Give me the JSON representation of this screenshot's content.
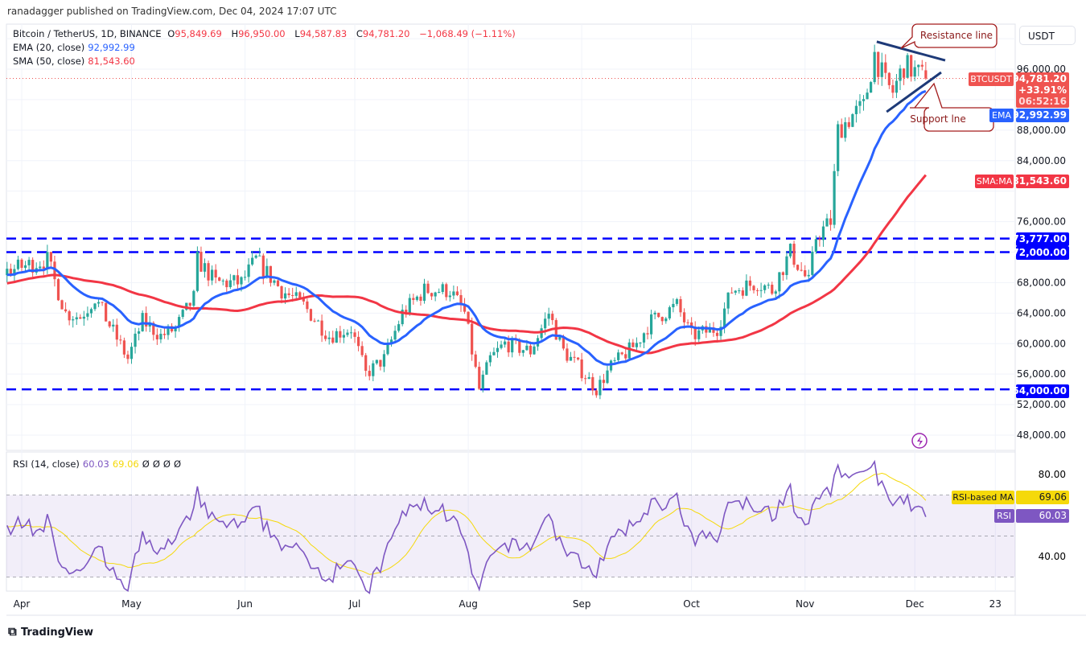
{
  "published": "ranadagger published on TradingView.com, Dec 04, 2024 17:07 UTC",
  "legend": {
    "symbol": "Bitcoin / TetherUS, 1D, BINANCE",
    "o_label": "O",
    "o": "95,849.69",
    "h_label": "H",
    "h": "96,950.00",
    "l_label": "L",
    "l": "94,587.83",
    "c_label": "C",
    "c": "94,781.20",
    "change": "−1,068.49 (−1.11%)",
    "ema_label": "EMA (20, close)",
    "ema": "92,992.99",
    "sma_label": "SMA (50, close)",
    "sma": "81,543.60",
    "rsi_label": "RSI (14, close)",
    "rsi": "60.03",
    "rsi_ma": "69.06",
    "na": [
      "Ø",
      "Ø",
      "Ø",
      "Ø"
    ]
  },
  "currency": "USDT",
  "badges": {
    "symbol": "BTCUSDT",
    "price": "94,781.20",
    "pct": "+33.91%",
    "countdown": "06:52:16",
    "ema_tag": "EMA",
    "ema": "92,992.99",
    "sma_tag": "SMA:MA",
    "sma": "81,543.60",
    "lvl1": "73,777.00",
    "lvl2": "72,000.00",
    "lvl3": "54,000.00",
    "rsi_ma_tag": "RSI-based MA",
    "rsi_ma": "69.06",
    "rsi_tag": "RSI",
    "rsi": "60.03"
  },
  "annotations": {
    "resistance": "Resistance line",
    "support": "Support lne"
  },
  "footer": "TradingView",
  "colors": {
    "up": "#26a69a",
    "down": "#ef5350",
    "ema": "#2962ff",
    "sma": "#f23645",
    "level": "#0000ff",
    "rsi": "#7e57c2",
    "rsi_ma": "#f5d90a",
    "trend": "#1e3a78"
  },
  "chart_data": {
    "type": "candlestick",
    "title": "Bitcoin / TetherUS, 1D, BINANCE",
    "x_unit": "days since 2024-04-01",
    "xlabels": [
      {
        "day": 0,
        "label": "Apr"
      },
      {
        "day": 30,
        "label": "May"
      },
      {
        "day": 61,
        "label": "Jun"
      },
      {
        "day": 91,
        "label": "Jul"
      },
      {
        "day": 122,
        "label": "Aug"
      },
      {
        "day": 153,
        "label": "Sep"
      },
      {
        "day": 183,
        "label": "Oct"
      },
      {
        "day": 214,
        "label": "Nov"
      },
      {
        "day": 244,
        "label": "Dec"
      },
      {
        "day": 266,
        "label": "23"
      }
    ],
    "ylim": [
      46000,
      102000
    ],
    "yticks": [
      96000,
      88000,
      84000,
      76000,
      68000,
      64000,
      60000,
      56000,
      52000,
      48000
    ],
    "rsi_ticks": [
      80,
      40
    ],
    "close_anchors": [
      [
        -60,
        62000
      ],
      [
        -40,
        68000
      ],
      [
        -20,
        68500
      ],
      [
        -4,
        69500
      ],
      [
        3,
        70500
      ],
      [
        7,
        71000
      ],
      [
        12,
        64000
      ],
      [
        16,
        63500
      ],
      [
        20,
        66000
      ],
      [
        29,
        58000
      ],
      [
        33,
        63000
      ],
      [
        38,
        61000
      ],
      [
        42,
        62000
      ],
      [
        47,
        66000
      ],
      [
        48,
        71000
      ],
      [
        53,
        68000
      ],
      [
        60,
        68000
      ],
      [
        64,
        71000
      ],
      [
        71,
        67000
      ],
      [
        77,
        65000
      ],
      [
        84,
        61000
      ],
      [
        90,
        62000
      ],
      [
        94,
        56000
      ],
      [
        99,
        58000
      ],
      [
        104,
        64000
      ],
      [
        110,
        67000
      ],
      [
        117,
        67000
      ],
      [
        121,
        64000
      ],
      [
        125,
        54000
      ],
      [
        128,
        58000
      ],
      [
        132,
        60000
      ],
      [
        139,
        59000
      ],
      [
        144,
        64000
      ],
      [
        148,
        59000
      ],
      [
        152,
        57000
      ],
      [
        157,
        54000
      ],
      [
        161,
        57000
      ],
      [
        168,
        60000
      ],
      [
        172,
        63000
      ],
      [
        179,
        65000
      ],
      [
        183,
        61000
      ],
      [
        190,
        62000
      ],
      [
        194,
        67000
      ],
      [
        201,
        68000
      ],
      [
        205,
        67000
      ],
      [
        210,
        72000
      ],
      [
        215,
        68000
      ],
      [
        217,
        74000
      ],
      [
        221,
        76000
      ],
      [
        223,
        88000
      ],
      [
        227,
        90000
      ],
      [
        230,
        91000
      ],
      [
        233,
        98000
      ],
      [
        236,
        94000
      ],
      [
        238,
        93000
      ],
      [
        241,
        96500
      ],
      [
        243,
        96000
      ],
      [
        247,
        94781
      ]
    ],
    "last": {
      "open": 95849.69,
      "high": 96950,
      "low": 94587.83,
      "close": 94781.2
    },
    "levels": [
      73777,
      72000,
      54000
    ],
    "trendlines": {
      "resistance": [
        [
          233.6,
          99600
        ],
        [
          252.3,
          97150
        ]
      ],
      "support": [
        [
          236.3,
          90400
        ],
        [
          251.2,
          95580
        ]
      ]
    },
    "indicators": {
      "ema_period": 20,
      "sma_period": 50,
      "rsi_period": 14,
      "rsi_ma_period": 14,
      "rsi_bands": [
        70,
        50,
        30
      ]
    }
  }
}
